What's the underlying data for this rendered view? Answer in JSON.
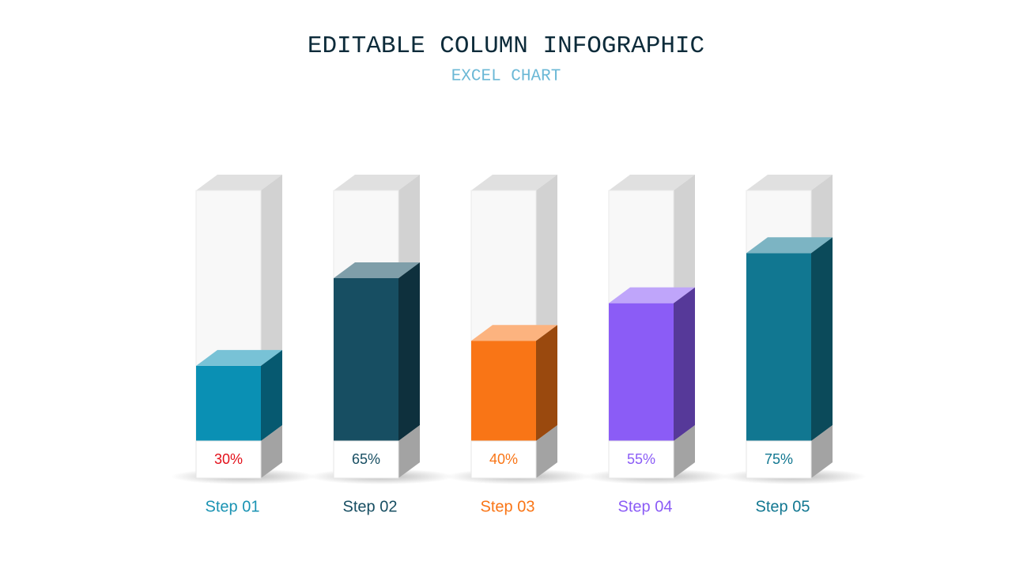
{
  "chart_data": {
    "type": "column3d",
    "title": "EDITABLE COLUMN INFOGRAPHIC",
    "subtitle": "EXCEL CHART",
    "categories": [
      "Step 01",
      "Step 02",
      "Step 03",
      "Step 04",
      "Step 05"
    ],
    "values": [
      30,
      65,
      40,
      55,
      75
    ],
    "value_labels": [
      "30%",
      "65%",
      "40%",
      "55%",
      "75%"
    ],
    "colors": [
      "#0a90b4",
      "#174e62",
      "#f97516",
      "#8b5cf6",
      "#117791"
    ],
    "value_label_colors": [
      "#e3101a",
      "#174e62",
      "#f97516",
      "#8b5cf6",
      "#117791"
    ],
    "category_colors": [
      "#1a93b3",
      "#174e62",
      "#f97516",
      "#8b5cf6",
      "#117791"
    ],
    "ylim": [
      0,
      100
    ]
  }
}
